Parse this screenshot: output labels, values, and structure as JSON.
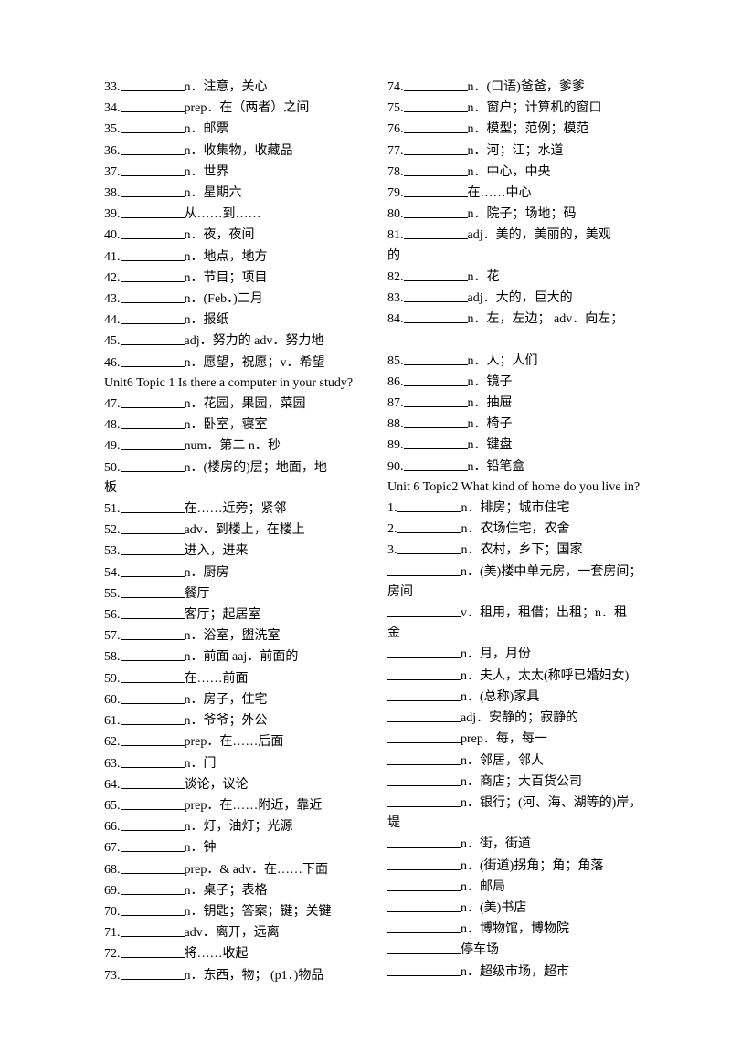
{
  "left": [
    {
      "n": "33.",
      "t": "n．注意，关心"
    },
    {
      "n": "34.",
      "t": "prep．在（两者）之间"
    },
    {
      "n": "35.",
      "t": "n．邮票"
    },
    {
      "n": "36.",
      "t": "n．收集物，收藏品"
    },
    {
      "n": "37.",
      "t": "n．世界"
    },
    {
      "n": "38.",
      "t": "n．星期六"
    },
    {
      "n": "39.",
      "t": "从……到……"
    },
    {
      "n": "40.",
      "t": "n．夜，夜间"
    },
    {
      "n": "41.",
      "t": "n．地点，地方"
    },
    {
      "n": "42.",
      "t": "n．节目；项目"
    },
    {
      "n": "43.",
      "t": "n．(Feb．)二月"
    },
    {
      "n": "44.",
      "t": "n．报纸"
    },
    {
      "n": "45.",
      "t": "adj．努力的 adv．努力地"
    },
    {
      "n": "46.",
      "t": "n．愿望，祝愿；v．希望"
    }
  ],
  "leftHeader": "Unit6 Topic 1 Is there a computer in your study?",
  "left2": [
    {
      "n": "47.",
      "t": "n．花园，果园，菜园"
    },
    {
      "n": "48.",
      "t": "n．卧室，寝室"
    },
    {
      "n": "49.",
      "t": "num．第二  n．秒"
    },
    {
      "n": "50.",
      "t": "n．(楼房的)层；地面，地"
    }
  ],
  "leftWrap1": "板",
  "left3": [
    {
      "n": "51.",
      "t": "在……近旁；紧邻"
    },
    {
      "n": "52.",
      "t": "adv．到楼上，在楼上"
    },
    {
      "n": "53.",
      "t": "进入，进来"
    },
    {
      "n": "54.",
      "t": "n．厨房"
    },
    {
      "n": "55.",
      "t": "餐厅"
    },
    {
      "n": "56.",
      "t": "客厅；起居室"
    },
    {
      "n": "57.",
      "t": "n．浴室，盥洗室"
    },
    {
      "n": "58.",
      "t": "n．前面  aaj．前面的"
    },
    {
      "n": "59.",
      "t": "在……前面"
    },
    {
      "n": "60.",
      "t": "n．房子，住宅"
    },
    {
      "n": "61.",
      "t": "n．爷爷；外公"
    },
    {
      "n": "62.",
      "t": "prep．在……后面"
    },
    {
      "n": "63.",
      "t": "n．门"
    },
    {
      "n": "64.",
      "t": "谈论，议论"
    },
    {
      "n": "65.",
      "t": "prep．在……附近，靠近"
    },
    {
      "n": "66.",
      "t": "n．灯，油灯；光源"
    },
    {
      "n": "67.",
      "t": "n．钟"
    },
    {
      "n": "68.",
      "t": "prep．& adv．在……下面"
    },
    {
      "n": "69.",
      "t": "n．桌子；表格"
    },
    {
      "n": "70.",
      "t": "n．钥匙；答案；键；关键"
    },
    {
      "n": "71.",
      "t": "adv．离开，远离"
    },
    {
      "n": "72.",
      "t": "将……收起"
    },
    {
      "n": "73.",
      "t": "n．东西，物； (p1．)物品"
    }
  ],
  "right": [
    {
      "n": "74.",
      "t": "n．(口语)爸爸，爹爹"
    },
    {
      "n": "75.",
      "t": "n．窗户；计算机的窗口"
    },
    {
      "n": "76.",
      "t": "n．模型；范例；模范"
    },
    {
      "n": "77.",
      "t": "n．河；江；水道"
    },
    {
      "n": "78.",
      "t": "n．中心，中央"
    },
    {
      "n": "79.",
      "t": "在……中心"
    },
    {
      "n": "80.",
      "t": "n．院子；场地；码"
    },
    {
      "n": "81.",
      "t": "adj．美的，美丽的，美观"
    }
  ],
  "rightWrap1": "的",
  "right2": [
    {
      "n": "82.",
      "t": "n．花"
    },
    {
      "n": "83.",
      "t": "adj．大的，巨大的"
    },
    {
      "n": "84.",
      "t": "n．左，左边；  adv．向左；"
    }
  ],
  "right3": [
    {
      "n": "85.",
      "t": "n．人；人们"
    },
    {
      "n": "86.",
      "t": "n．镜子"
    },
    {
      "n": "87.",
      "t": "n．抽屉"
    },
    {
      "n": "88.",
      "t": "n．椅子"
    },
    {
      "n": "89.",
      "t": "n．键盘"
    },
    {
      "n": "90.",
      "t": "n．铅笔盒"
    }
  ],
  "rightHeader": "Unit 6 Topic2 What kind of home do you live in?",
  "right4": [
    {
      "n": "1.",
      "t": "n．排房；城市住宅"
    },
    {
      "n": "2.",
      "t": "n．农场住宅，农舍"
    },
    {
      "n": "3.",
      "t": "n．农村，乡下；国家"
    }
  ],
  "right5a": {
    "t": "n．(美)楼中单元房，一套房间；"
  },
  "rightWrap2": "房间",
  "right5b": {
    "t": "v．租用，租借；出租；n．租"
  },
  "rightWrap3": "金",
  "right6": [
    {
      "t": "n．月，月份"
    },
    {
      "t": "n．夫人，太太(称呼已婚妇女)"
    },
    {
      "t": "n．(总称)家具"
    },
    {
      "t": "adj．安静的；寂静的"
    },
    {
      "t": "prep．每，每一"
    },
    {
      "t": "n．邻居，邻人"
    },
    {
      "t": "n．商店；大百货公司"
    },
    {
      "t": "n．银行；(河、海、湖等的)岸，"
    }
  ],
  "rightWrap4": "堤",
  "right7": [
    {
      "t": "n．街，街道"
    },
    {
      "t": "n．(街道)拐角；角；角落"
    },
    {
      "t": "n．邮局"
    },
    {
      "t": "n．(美)书店"
    },
    {
      "t": "n．博物馆，博物院"
    },
    {
      "t": "停车场"
    },
    {
      "t": "n．超级市场，超市"
    }
  ]
}
